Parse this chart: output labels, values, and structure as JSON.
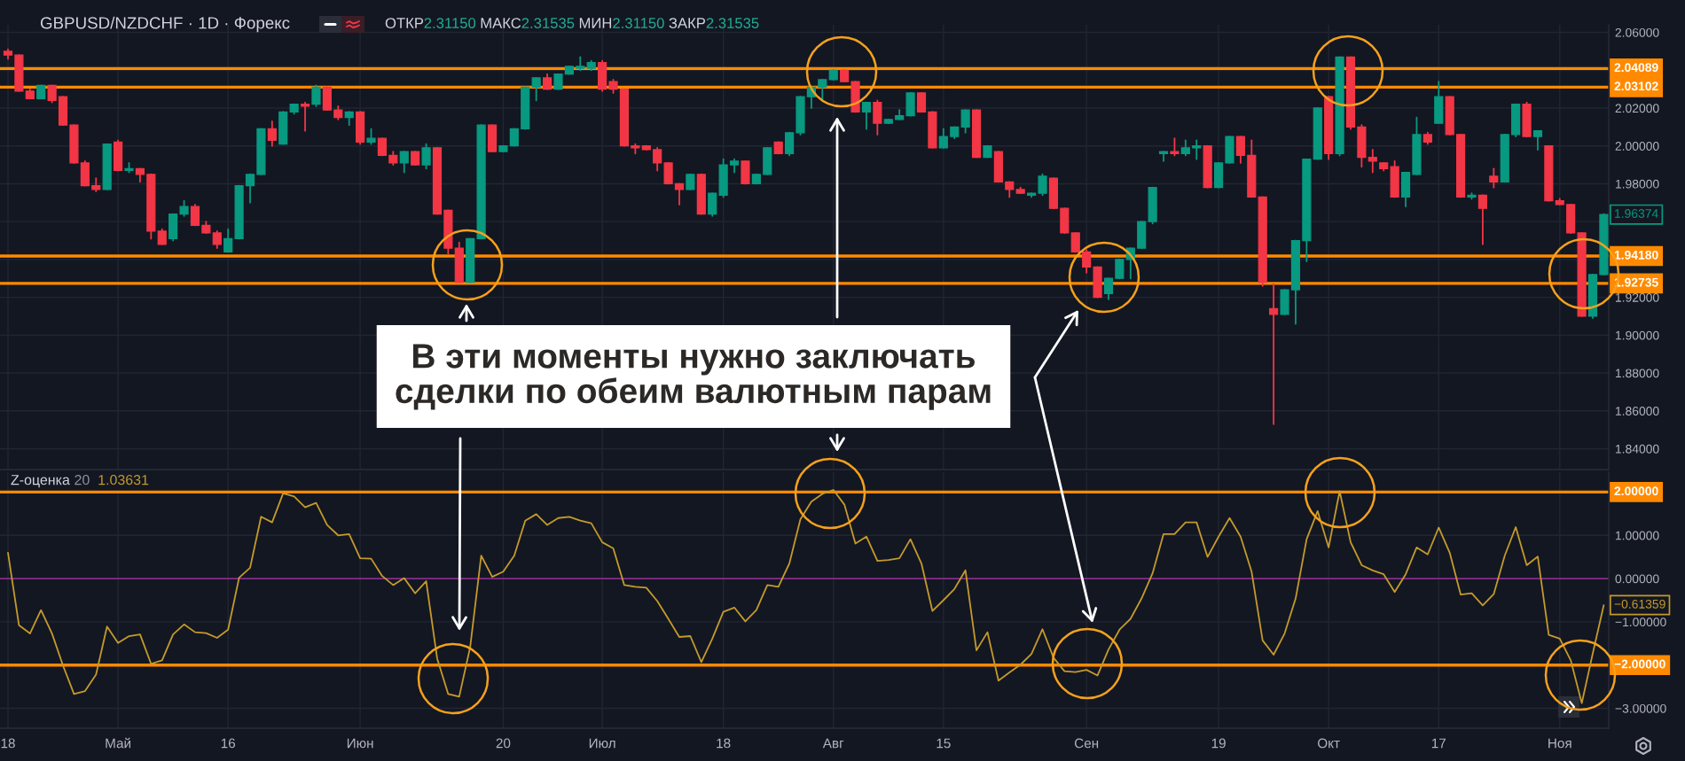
{
  "chart_data": [
    {
      "type": "candlestick",
      "title": "GBPUSD/NZDCHF · 1D · Форекс",
      "subtitle": "ОТКР2.31150 МАКС2.31535 МИН2.31150 ЗАКР2.31535",
      "categories": [
        null,
        null,
        null,
        null,
        null,
        null,
        null,
        null,
        null,
        null,
        null,
        null,
        null,
        null,
        null,
        null,
        null,
        null,
        null,
        null,
        null,
        null,
        null,
        null,
        null,
        null,
        null,
        null,
        null,
        null,
        null,
        null,
        null,
        null,
        null,
        null,
        null,
        null,
        null,
        null,
        null,
        null,
        null,
        null,
        null,
        null,
        null,
        null,
        null,
        null,
        null,
        null,
        null,
        null,
        null,
        null,
        null,
        null,
        null,
        null,
        null,
        null,
        null,
        null,
        null,
        null,
        null,
        null,
        null,
        null,
        null,
        null,
        null,
        null,
        null,
        null,
        null,
        null,
        null,
        null,
        null,
        null,
        null,
        null,
        null,
        null,
        null,
        null,
        null,
        null,
        null,
        null,
        null,
        null,
        null,
        null,
        null,
        null,
        null,
        null,
        null,
        null,
        null,
        null,
        null,
        null,
        null,
        null,
        null,
        null,
        null,
        null,
        null,
        null,
        null,
        null,
        null,
        null,
        null,
        null,
        null,
        null,
        null,
        null,
        null,
        null,
        null,
        null,
        null,
        null,
        null,
        null,
        null,
        null,
        null,
        null,
        null,
        null,
        null,
        null,
        null,
        null,
        null,
        null,
        null,
        null
      ],
      "ohlc": [
        [
          2.05,
          2.051,
          2.046,
          2.048
        ],
        [
          2.048,
          2.048,
          2.029,
          2.029
        ],
        [
          2.029,
          2.03,
          2.025,
          2.025
        ],
        [
          2.025,
          2.032,
          2.025,
          2.032
        ],
        [
          2.032,
          2.032,
          2.023,
          2.024
        ],
        [
          2.026,
          2.026,
          2.011,
          2.011
        ],
        [
          2.011,
          2.011,
          1.991,
          1.991
        ],
        [
          1.991,
          1.992,
          1.979,
          1.979
        ],
        [
          1.979,
          1.983,
          1.976,
          1.977
        ],
        [
          1.977,
          2.001,
          1.977,
          2.001
        ],
        [
          2.002,
          2.003,
          1.987,
          1.987
        ],
        [
          1.987,
          1.991,
          1.986,
          1.988
        ],
        [
          1.988,
          1.988,
          1.981,
          1.985
        ],
        [
          1.985,
          1.985,
          1.951,
          1.955
        ],
        [
          1.955,
          1.956,
          1.948,
          1.948
        ],
        [
          1.951,
          1.964,
          1.95,
          1.964
        ],
        [
          1.964,
          1.971,
          1.963,
          1.968
        ],
        [
          1.968,
          1.969,
          1.958,
          1.958
        ],
        [
          1.958,
          1.96,
          1.954,
          1.954
        ],
        [
          1.954,
          1.955,
          1.946,
          1.948
        ],
        [
          1.944,
          1.956,
          1.944,
          1.951
        ],
        [
          1.951,
          1.979,
          1.951,
          1.979
        ],
        [
          1.979,
          1.985,
          1.97,
          1.985
        ],
        [
          1.985,
          2.009,
          1.985,
          2.009
        ],
        [
          2.009,
          2.013,
          2.0,
          2.003
        ],
        [
          2.001,
          2.018,
          2.001,
          2.018
        ],
        [
          2.018,
          2.022,
          2.017,
          2.022
        ],
        [
          2.022,
          2.023,
          2.008,
          2.021
        ],
        [
          2.022,
          2.032,
          2.021,
          2.031
        ],
        [
          2.031,
          2.031,
          2.019,
          2.019
        ],
        [
          2.019,
          2.021,
          2.014,
          2.015
        ],
        [
          2.015,
          2.018,
          2.011,
          2.018
        ],
        [
          2.018,
          2.018,
          2.001,
          2.002
        ],
        [
          2.002,
          2.009,
          2.001,
          2.004
        ],
        [
          2.004,
          2.004,
          1.995,
          1.995
        ],
        [
          1.995,
          1.997,
          1.99,
          1.991
        ],
        [
          1.991,
          1.997,
          1.986,
          1.997
        ],
        [
          1.997,
          1.997,
          1.99,
          1.99
        ],
        [
          1.99,
          2.001,
          1.988,
          1.999
        ],
        [
          1.999,
          1.999,
          1.964,
          1.964
        ],
        [
          1.966,
          1.966,
          1.943,
          1.946
        ],
        [
          1.946,
          1.949,
          1.928,
          1.928
        ],
        [
          1.928,
          1.951,
          1.928,
          1.951
        ],
        [
          1.951,
          2.011,
          1.951,
          2.011
        ],
        [
          2.011,
          2.011,
          1.997,
          1.997
        ],
        [
          1.997,
          2.0,
          1.997,
          2.0
        ],
        [
          2.0,
          2.009,
          2.0,
          2.009
        ],
        [
          2.009,
          2.031,
          2.009,
          2.031
        ],
        [
          2.031,
          2.036,
          2.024,
          2.036
        ],
        [
          2.036,
          2.038,
          2.03,
          2.03
        ],
        [
          2.03,
          2.038,
          2.03,
          2.038
        ],
        [
          2.038,
          2.042,
          2.038,
          2.042
        ],
        [
          2.041,
          2.047,
          2.04,
          2.042
        ],
        [
          2.041,
          2.045,
          2.04,
          2.044
        ],
        [
          2.044,
          2.045,
          2.029,
          2.03
        ],
        [
          2.034,
          2.035,
          2.028,
          2.03
        ],
        [
          2.03,
          2.03,
          2.0,
          2.0
        ],
        [
          2.0,
          2.001,
          1.996,
          1.999
        ],
        [
          2.0,
          2.0,
          1.998,
          1.998
        ],
        [
          1.998,
          1.999,
          1.987,
          1.991
        ],
        [
          1.991,
          1.991,
          1.98,
          1.98
        ],
        [
          1.98,
          1.98,
          1.969,
          1.977
        ],
        [
          1.977,
          1.985,
          1.977,
          1.985
        ],
        [
          1.985,
          1.985,
          1.964,
          1.964
        ],
        [
          1.964,
          1.975,
          1.963,
          1.975
        ],
        [
          1.974,
          1.993,
          1.973,
          1.99
        ],
        [
          1.99,
          1.993,
          1.986,
          1.992
        ],
        [
          1.992,
          1.992,
          1.98,
          1.98
        ],
        [
          1.98,
          1.985,
          1.98,
          1.985
        ],
        [
          1.985,
          1.999,
          1.985,
          1.999
        ],
        [
          2.002,
          2.002,
          1.996,
          1.996
        ],
        [
          1.996,
          2.007,
          1.995,
          2.007
        ],
        [
          2.007,
          2.026,
          2.006,
          2.026
        ],
        [
          2.026,
          2.031,
          2.02,
          2.031
        ],
        [
          2.031,
          2.035,
          2.024,
          2.035
        ],
        [
          2.035,
          2.04,
          2.035,
          2.04
        ],
        [
          2.04,
          2.04,
          2.034,
          2.034
        ],
        [
          2.034,
          2.034,
          2.018,
          2.018
        ],
        [
          2.018,
          2.023,
          2.009,
          2.023
        ],
        [
          2.023,
          2.024,
          2.006,
          2.012
        ],
        [
          2.012,
          2.014,
          2.012,
          2.014
        ],
        [
          2.014,
          2.019,
          2.014,
          2.016
        ],
        [
          2.016,
          2.028,
          2.016,
          2.028
        ],
        [
          2.028,
          2.028,
          2.018,
          2.018
        ],
        [
          2.018,
          2.018,
          1.999,
          1.999
        ],
        [
          1.999,
          2.009,
          1.999,
          2.005
        ],
        [
          2.005,
          2.01,
          2.004,
          2.01
        ],
        [
          2.01,
          2.019,
          2.007,
          2.019
        ],
        [
          2.019,
          2.019,
          1.994,
          1.994
        ],
        [
          1.994,
          2.0,
          1.994,
          2.0
        ],
        [
          1.997,
          1.997,
          1.981,
          1.981
        ],
        [
          1.981,
          1.981,
          1.973,
          1.977
        ],
        [
          1.977,
          1.978,
          1.975,
          1.975
        ],
        [
          1.974,
          1.975,
          1.973,
          1.975
        ],
        [
          1.975,
          1.985,
          1.974,
          1.984
        ],
        [
          1.983,
          1.983,
          1.967,
          1.967
        ],
        [
          1.967,
          1.967,
          1.954,
          1.954
        ],
        [
          1.954,
          1.954,
          1.944,
          1.944
        ],
        [
          1.944,
          1.945,
          1.933,
          1.936
        ],
        [
          1.936,
          1.936,
          1.92,
          1.92
        ],
        [
          1.922,
          1.93,
          1.919,
          1.93
        ],
        [
          1.93,
          1.94,
          1.93,
          1.94
        ],
        [
          1.94,
          1.946,
          1.93,
          1.946
        ],
        [
          1.946,
          1.96,
          1.946,
          1.96
        ],
        [
          1.96,
          1.978,
          1.959,
          1.978
        ],
        [
          1.996,
          1.997,
          1.992,
          1.997
        ],
        [
          1.997,
          2.004,
          1.995,
          1.996
        ],
        [
          1.996,
          2.003,
          1.995,
          1.999
        ],
        [
          1.999,
          2.003,
          1.993,
          2.0
        ],
        [
          2.0,
          2.0,
          1.978,
          1.978
        ],
        [
          1.978,
          1.991,
          1.978,
          1.991
        ],
        [
          1.991,
          2.005,
          1.991,
          2.005
        ],
        [
          2.005,
          2.005,
          1.991,
          1.995
        ],
        [
          1.995,
          2.003,
          1.973,
          1.973
        ],
        [
          1.973,
          1.973,
          1.926,
          1.928
        ],
        [
          1.914,
          1.927,
          1.853,
          1.911
        ],
        [
          1.911,
          1.924,
          1.911,
          1.924
        ],
        [
          1.924,
          1.95,
          1.906,
          1.95
        ],
        [
          1.95,
          1.993,
          1.939,
          1.993
        ],
        [
          1.993,
          2.02,
          1.993,
          2.02
        ],
        [
          2.026,
          2.026,
          1.993,
          1.996
        ],
        [
          1.996,
          2.047,
          1.995,
          2.047
        ],
        [
          2.047,
          2.047,
          2.009,
          2.01
        ],
        [
          2.01,
          2.011,
          1.989,
          1.994
        ],
        [
          1.994,
          1.998,
          1.986,
          1.992
        ],
        [
          1.991,
          1.991,
          1.987,
          1.988
        ],
        [
          1.989,
          1.992,
          1.973,
          1.973
        ],
        [
          1.973,
          1.986,
          1.968,
          1.986
        ],
        [
          1.985,
          2.015,
          1.985,
          2.006
        ],
        [
          2.006,
          2.007,
          2.001,
          2.002
        ],
        [
          2.012,
          2.034,
          2.012,
          2.026
        ],
        [
          2.026,
          2.026,
          2.006,
          2.006
        ],
        [
          2.006,
          2.006,
          1.973,
          1.973
        ],
        [
          1.973,
          1.975,
          1.972,
          1.974
        ],
        [
          1.974,
          1.974,
          1.948,
          1.967
        ],
        [
          1.984,
          1.988,
          1.978,
          1.981
        ],
        [
          1.981,
          2.006,
          1.981,
          2.006
        ],
        [
          2.006,
          2.022,
          2.005,
          2.022
        ],
        [
          2.022,
          2.023,
          2.005,
          2.005
        ],
        [
          2.005,
          2.008,
          1.998,
          2.008
        ],
        [
          2.0,
          2.0,
          1.971,
          1.971
        ],
        [
          1.971,
          1.972,
          1.969,
          1.969
        ],
        [
          1.969,
          1.969,
          1.954,
          1.954
        ],
        [
          1.954,
          1.954,
          1.91,
          1.91
        ],
        [
          1.91,
          1.932,
          1.909,
          1.932
        ],
        [
          1.932,
          1.964,
          1.932,
          1.96374
        ]
      ],
      "colors": [
        "#f23645",
        "#f23645",
        "#f23645",
        "#089981",
        "#f23645",
        "#f23645",
        "#f23645",
        "#f23645",
        "#f23645",
        "#089981",
        "#f23645",
        "#089981",
        "#f23645",
        "#f23645",
        "#f23645",
        "#089981",
        "#089981",
        "#f23645",
        "#f23645",
        "#f23645",
        "#089981",
        "#089981",
        "#089981",
        "#089981",
        "#f23645",
        "#089981",
        "#089981",
        "#f23645",
        "#089981",
        "#f23645",
        "#f23645",
        "#089981",
        "#f23645",
        "#089981",
        "#f23645",
        "#f23645",
        "#089981",
        "#f23645",
        "#089981",
        "#f23645",
        "#f23645",
        "#f23645",
        "#089981",
        "#089981",
        "#f23645",
        "#089981",
        "#089981",
        "#089981",
        "#089981",
        "#f23645",
        "#089981",
        "#089981",
        "#089981",
        "#089981",
        "#f23645",
        "#f23645",
        "#f23645",
        "#f23645",
        "#f23645",
        "#f23645",
        "#f23645",
        "#f23645",
        "#089981",
        "#f23645",
        "#089981",
        "#089981",
        "#089981",
        "#f23645",
        "#089981",
        "#089981",
        "#f23645",
        "#089981",
        "#089981",
        "#089981",
        "#089981",
        "#089981",
        "#f23645",
        "#f23645",
        "#089981",
        "#f23645",
        "#089981",
        "#089981",
        "#089981",
        "#f23645",
        "#f23645",
        "#089981",
        "#089981",
        "#089981",
        "#f23645",
        "#089981",
        "#f23645",
        "#f23645",
        "#f23645",
        "#089981",
        "#089981",
        "#f23645",
        "#f23645",
        "#f23645",
        "#f23645",
        "#f23645",
        "#089981",
        "#089981",
        "#089981",
        "#089981",
        "#089981",
        "#089981",
        "#f23645",
        "#089981",
        "#089981",
        "#f23645",
        "#089981",
        "#089981",
        "#f23645",
        "#f23645",
        "#f23645",
        "#f23645",
        "#089981",
        "#089981",
        "#089981",
        "#089981",
        "#f23645",
        "#089981",
        "#f23645",
        "#f23645",
        "#f23645",
        "#f23645",
        "#f23645",
        "#089981",
        "#089981",
        "#f23645",
        "#089981",
        "#f23645",
        "#f23645",
        "#089981",
        "#f23645",
        "#f23645",
        "#089981",
        "#089981",
        "#f23645",
        "#089981",
        "#f23645",
        "#f23645",
        "#f23645",
        "#f23645",
        "#089981",
        "#089981"
      ],
      "ylim": [
        1.829,
        2.064
      ],
      "yticks": [
        {
          "value": 1.84,
          "label": "1.84000"
        },
        {
          "value": 1.86,
          "label": "1.86000"
        },
        {
          "value": 1.88,
          "label": "1.88000"
        },
        {
          "value": 1.9,
          "label": "1.90000"
        },
        {
          "value": 1.92,
          "label": "1.92000"
        },
        {
          "value": 1.94,
          "label": null
        },
        {
          "value": 1.96,
          "label": null
        },
        {
          "value": 1.98,
          "label": "1.98000"
        },
        {
          "value": 2.0,
          "label": "2.00000"
        },
        {
          "value": 2.02,
          "label": "2.02000"
        },
        {
          "value": 2.04,
          "label": null
        },
        {
          "value": 2.06,
          "label": "2.06000"
        }
      ],
      "grid": true,
      "tick_labels": "y",
      "ref_lines": [
        {
          "axis": "y",
          "value": 2.04089,
          "label": "2.04089",
          "color": "#ff8a00"
        },
        {
          "axis": "y",
          "value": 2.03102,
          "label": "2.03102",
          "color": "#ff8a00"
        },
        {
          "axis": "y",
          "value": 1.9418,
          "label": "1.94180",
          "color": "#ff8a00"
        },
        {
          "axis": "y",
          "value": 1.92735,
          "label": "1.92735",
          "color": "#ff8a00"
        }
      ],
      "annotations": [
        "В эти моменты нужно заключать\nсделки по обеим валютным парам",
        "1.96374"
      ]
    },
    {
      "type": "line",
      "title": "Z-оценка 20",
      "categories": [
        "18",
        null,
        null,
        null,
        null,
        null,
        null,
        null,
        null,
        null,
        "Май",
        null,
        null,
        null,
        null,
        null,
        null,
        null,
        null,
        null,
        "16",
        null,
        null,
        null,
        null,
        null,
        null,
        null,
        null,
        null,
        null,
        null,
        "Июн",
        null,
        null,
        null,
        null,
        null,
        null,
        null,
        null,
        null,
        null,
        null,
        null,
        "20",
        null,
        null,
        null,
        null,
        null,
        null,
        null,
        null,
        "Июл",
        null,
        null,
        null,
        null,
        null,
        null,
        null,
        null,
        null,
        null,
        "18",
        null,
        null,
        null,
        null,
        null,
        null,
        null,
        null,
        null,
        "Авг",
        null,
        null,
        null,
        null,
        null,
        null,
        null,
        null,
        null,
        "15",
        null,
        null,
        null,
        null,
        null,
        null,
        null,
        null,
        null,
        null,
        null,
        null,
        "Сен",
        null,
        null,
        null,
        null,
        null,
        null,
        null,
        null,
        null,
        null,
        null,
        "19",
        null,
        null,
        null,
        null,
        null,
        null,
        null,
        null,
        null,
        "Окт",
        null,
        null,
        null,
        null,
        null,
        null,
        null,
        null,
        null,
        "17",
        null,
        null,
        null,
        null,
        null,
        null,
        null,
        null,
        null,
        null,
        "Ноя",
        null,
        null,
        null,
        null
      ],
      "series": [
        {
          "color": "#c49a2c",
          "values": [
            0.6,
            -1.08,
            -1.27,
            -0.73,
            -1.27,
            -2.01,
            -2.67,
            -2.6,
            -2.22,
            -1.11,
            -1.49,
            -1.33,
            -1.29,
            -1.97,
            -1.89,
            -1.29,
            -1.06,
            -1.24,
            -1.26,
            -1.37,
            -1.18,
            0.02,
            0.25,
            1.43,
            1.3,
            1.97,
            1.9,
            1.65,
            1.75,
            1.24,
            1.0,
            1.03,
            0.47,
            0.46,
            0.06,
            -0.15,
            0.01,
            -0.34,
            -0.06,
            -1.85,
            -2.67,
            -2.73,
            -1.58,
            0.53,
            0.04,
            0.16,
            0.53,
            1.34,
            1.49,
            1.24,
            1.4,
            1.43,
            1.34,
            1.28,
            0.84,
            0.7,
            -0.15,
            -0.19,
            -0.21,
            -0.52,
            -0.93,
            -1.35,
            -1.33,
            -1.93,
            -1.39,
            -0.77,
            -0.67,
            -0.99,
            -0.73,
            -0.15,
            -0.19,
            0.35,
            1.37,
            1.78,
            1.96,
            2.05,
            1.71,
            0.81,
            0.97,
            0.41,
            0.43,
            0.47,
            0.91,
            0.35,
            -0.75,
            -0.5,
            -0.24,
            0.19,
            -1.66,
            -1.24,
            -2.36,
            -2.17,
            -1.99,
            -1.74,
            -1.17,
            -1.83,
            -2.14,
            -2.16,
            -2.11,
            -2.24,
            -1.64,
            -1.18,
            -0.93,
            -0.46,
            0.12,
            1.03,
            1.03,
            1.3,
            1.3,
            0.5,
            0.97,
            1.4,
            0.97,
            0.16,
            -1.43,
            -1.76,
            -1.27,
            -0.46,
            0.91,
            1.56,
            0.72,
            2.02,
            0.84,
            0.31,
            0.19,
            0.1,
            -0.31,
            0.1,
            0.72,
            0.56,
            1.18,
            0.6,
            -0.37,
            -0.34,
            -0.62,
            -0.36,
            0.53,
            1.19,
            0.31,
            0.51,
            -1.3,
            -1.39,
            -1.89,
            -2.88,
            -1.73,
            -0.61359
          ]
        }
      ],
      "ylim": [
        -3.46,
        2.46
      ],
      "yticks": [
        {
          "value": -3,
          "label": "−3.00000"
        },
        {
          "value": -1,
          "label": "−1.00000"
        },
        {
          "value": 0,
          "label": "0.00000"
        },
        {
          "value": 1,
          "label": "1.00000"
        }
      ],
      "grid": true,
      "ref_lines": [
        {
          "axis": "y",
          "value": 2,
          "label": "2.00000",
          "color": "#ff8a00"
        },
        {
          "axis": "y",
          "value": -2,
          "label": "−2.00000",
          "color": "#ff8a00"
        },
        {
          "axis": "y",
          "value": 0,
          "color": "#862d8a"
        }
      ],
      "annotations": [
        "1.03631",
        "−0.61359"
      ]
    }
  ]
}
